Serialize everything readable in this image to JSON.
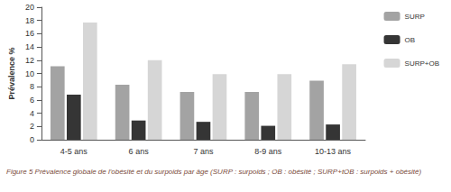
{
  "chart_data": {
    "type": "bar",
    "title": "Figure 5 Prévalence globale de l'obésité et du surpoids par âge (SURP : surpoids ; OB : obésité ; SURP+tOB : surpoids + obésité)",
    "categories": [
      "4-5 ans",
      "6 ans",
      "7 ans",
      "8-9 ans",
      "10-13 ans"
    ],
    "series": [
      {
        "name": "SURP",
        "color": "#a3a3a3",
        "values": [
          11.1,
          8.3,
          7.2,
          7.2,
          8.9
        ]
      },
      {
        "name": "OB",
        "color": "#353535",
        "values": [
          6.8,
          2.9,
          2.7,
          2.1,
          2.3
        ]
      },
      {
        "name": "SURP+OB",
        "color": "#d6d6d6",
        "values": [
          17.7,
          12.0,
          9.9,
          9.9,
          11.4
        ]
      }
    ],
    "ylabel": "Prévalence %",
    "ylim": [
      0,
      20
    ],
    "yticks": [
      0,
      2,
      4,
      6,
      8,
      10,
      12,
      14,
      16,
      18,
      20
    ],
    "grid": false,
    "legend": "right"
  }
}
